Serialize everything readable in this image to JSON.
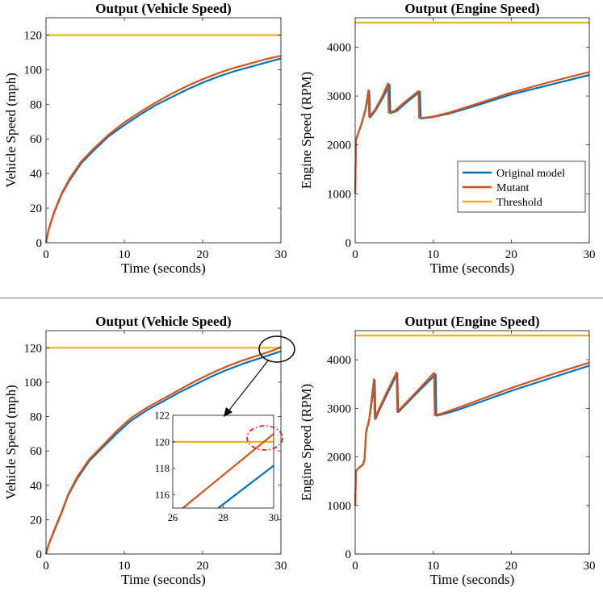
{
  "colors": {
    "original": "#0072BD",
    "mutant": "#D95319",
    "threshold": "#EDB120",
    "separator": "#8a8a8a",
    "annotation": "#000000",
    "highlight": "#e8000b"
  },
  "legend": {
    "original": "Original model",
    "mutant": "Mutant",
    "threshold": "Threshold"
  },
  "chart_data": [
    {
      "id": "top-left",
      "type": "line",
      "title": "Output (Vehicle Speed)",
      "xlabel": "Time (seconds)",
      "ylabel": "Vehicle Speed (mph)",
      "xlim": [
        0,
        30
      ],
      "ylim": [
        0,
        130
      ],
      "xticks": [
        0,
        10,
        20,
        30
      ],
      "yticks": [
        0,
        20,
        40,
        60,
        80,
        100,
        120
      ],
      "series": [
        {
          "name": "Original model",
          "key": "original",
          "x": [
            0,
            0.3,
            1,
            2,
            3,
            4.5,
            6,
            8,
            10,
            12,
            14,
            16,
            18,
            20,
            22,
            24,
            26,
            28,
            30
          ],
          "y": [
            0,
            7,
            17,
            28,
            36,
            46,
            53,
            61.5,
            68,
            74,
            79.5,
            84,
            88.5,
            92.5,
            96,
            99,
            101.5,
            104,
            106.5
          ]
        },
        {
          "name": "Mutant",
          "key": "mutant",
          "x": [
            0,
            0.3,
            1,
            2,
            3,
            4.5,
            6,
            8,
            10,
            12,
            14,
            16,
            18,
            20,
            22,
            24,
            26,
            28,
            30
          ],
          "y": [
            0,
            7,
            17.5,
            28.5,
            37,
            47,
            54,
            62.5,
            69.5,
            75.5,
            81,
            86,
            90.5,
            94.5,
            98,
            101,
            103.5,
            106,
            108
          ]
        },
        {
          "name": "Threshold",
          "key": "threshold",
          "x": [
            0,
            30
          ],
          "y": [
            120,
            120
          ]
        }
      ]
    },
    {
      "id": "top-right",
      "type": "line",
      "title": "Output (Engine Speed)",
      "xlabel": "Time (seconds)",
      "ylabel": "Engine Speed (RPM)",
      "xlim": [
        0,
        30
      ],
      "ylim": [
        0,
        4600
      ],
      "xticks": [
        0,
        10,
        20,
        30
      ],
      "yticks": [
        0,
        1000,
        2000,
        3000,
        4000
      ],
      "legend_position": "right",
      "series": [
        {
          "name": "Original model",
          "key": "original",
          "x": [
            0,
            0.1,
            0.3,
            0.8,
            1.3,
            1.8,
            1.9,
            2.6,
            3.5,
            4.4,
            4.5,
            5.3,
            6.5,
            8.3,
            8.4,
            9,
            10,
            12,
            15,
            20,
            25,
            30
          ],
          "y": [
            1000,
            2100,
            2200,
            2420,
            2700,
            3100,
            2560,
            2700,
            2950,
            3230,
            2650,
            2690,
            2860,
            3090,
            2540,
            2550,
            2570,
            2640,
            2780,
            3030,
            3230,
            3430
          ]
        },
        {
          "name": "Mutant",
          "key": "mutant",
          "x": [
            0,
            0.1,
            0.3,
            0.8,
            1.3,
            1.7,
            1.8,
            2.5,
            3.4,
            4.2,
            4.3,
            5.1,
            6.3,
            8.1,
            8.2,
            9,
            10,
            12,
            15,
            20,
            25,
            30
          ],
          "y": [
            1000,
            2100,
            2200,
            2430,
            2720,
            3120,
            2570,
            2710,
            2970,
            3260,
            2660,
            2700,
            2870,
            3100,
            2550,
            2560,
            2580,
            2660,
            2810,
            3070,
            3290,
            3490
          ]
        },
        {
          "name": "Threshold",
          "key": "threshold",
          "x": [
            0,
            30
          ],
          "y": [
            4500,
            4500
          ]
        }
      ]
    },
    {
      "id": "bottom-left",
      "type": "line",
      "title": "Output (Vehicle Speed)",
      "xlabel": "Time (seconds)",
      "ylabel": "Vehicle Speed (mph)",
      "xlim": [
        0,
        30
      ],
      "ylim": [
        0,
        130
      ],
      "xticks": [
        0,
        10,
        20,
        30
      ],
      "yticks": [
        0,
        20,
        40,
        60,
        80,
        100,
        120
      ],
      "series": [
        {
          "name": "Original model",
          "key": "original",
          "x": [
            0,
            0.3,
            1,
            2,
            2.8,
            4,
            5.5,
            7,
            9,
            10.8,
            13,
            15,
            17,
            19,
            21,
            23,
            25,
            27,
            29,
            30
          ],
          "y": [
            0,
            5,
            13,
            24,
            34,
            44,
            54,
            61,
            70,
            77.5,
            84,
            89,
            94,
            98.5,
            103,
            107,
            110.5,
            113.5,
            116.5,
            118
          ]
        },
        {
          "name": "Mutant",
          "key": "mutant",
          "x": [
            0,
            0.3,
            1,
            2,
            2.8,
            4,
            5.5,
            7,
            9,
            10.8,
            13,
            15,
            17,
            19,
            21,
            23,
            25,
            27,
            29,
            30
          ],
          "y": [
            0,
            5,
            13.5,
            24.5,
            34.5,
            45,
            55,
            62,
            71.5,
            79,
            85.5,
            90.5,
            95.5,
            100.5,
            105,
            109,
            112.5,
            115.5,
            118.5,
            120.5
          ]
        },
        {
          "name": "Threshold",
          "key": "threshold",
          "x": [
            0,
            30
          ],
          "y": [
            120,
            120
          ]
        }
      ],
      "inset": {
        "xlim": [
          26,
          30
        ],
        "ylim": [
          115,
          122
        ],
        "xticks": [
          26,
          28,
          30
        ],
        "yticks": [
          116,
          118,
          120,
          122
        ],
        "series": [
          {
            "key": "original",
            "x": [
              27.8,
              30
            ],
            "y": [
              115,
              118.2
            ]
          },
          {
            "key": "mutant",
            "x": [
              26.4,
              30
            ],
            "y": [
              115,
              120.6
            ]
          },
          {
            "key": "threshold",
            "x": [
              26,
              30
            ],
            "y": [
              120,
              120
            ]
          }
        ]
      }
    },
    {
      "id": "bottom-right",
      "type": "line",
      "title": "Output (Engine Speed)",
      "xlabel": "Time (seconds)",
      "ylabel": "Engine Speed (RPM)",
      "xlim": [
        0,
        30
      ],
      "ylim": [
        0,
        4600
      ],
      "xticks": [
        0,
        10,
        20,
        30
      ],
      "yticks": [
        0,
        1000,
        2000,
        3000,
        4000
      ],
      "series": [
        {
          "name": "Original model",
          "key": "original",
          "x": [
            0,
            0.1,
            0.3,
            1,
            1.2,
            1.4,
            1.8,
            2.5,
            2.6,
            3.2,
            4.2,
            5.4,
            5.5,
            6.3,
            8,
            10.3,
            10.4,
            11,
            13,
            16,
            20,
            25,
            30
          ],
          "y": [
            1000,
            1700,
            1750,
            1840,
            1950,
            2500,
            2760,
            3580,
            2780,
            3000,
            3330,
            3720,
            2920,
            3050,
            3330,
            3700,
            2850,
            2870,
            2960,
            3130,
            3360,
            3620,
            3880
          ]
        },
        {
          "name": "Mutant",
          "key": "mutant",
          "x": [
            0,
            0.1,
            0.3,
            1,
            1.2,
            1.4,
            1.8,
            2.4,
            2.5,
            3.1,
            4.1,
            5.3,
            5.4,
            6.2,
            7.9,
            10.1,
            10.2,
            11,
            13,
            16,
            20,
            25,
            30
          ],
          "y": [
            1000,
            1700,
            1750,
            1850,
            1960,
            2520,
            2780,
            3600,
            2790,
            3010,
            3350,
            3740,
            2930,
            3060,
            3350,
            3730,
            2860,
            2890,
            3000,
            3180,
            3420,
            3690,
            3940
          ]
        },
        {
          "name": "Threshold",
          "key": "threshold",
          "x": [
            0,
            30
          ],
          "y": [
            4500,
            4500
          ]
        }
      ]
    }
  ]
}
